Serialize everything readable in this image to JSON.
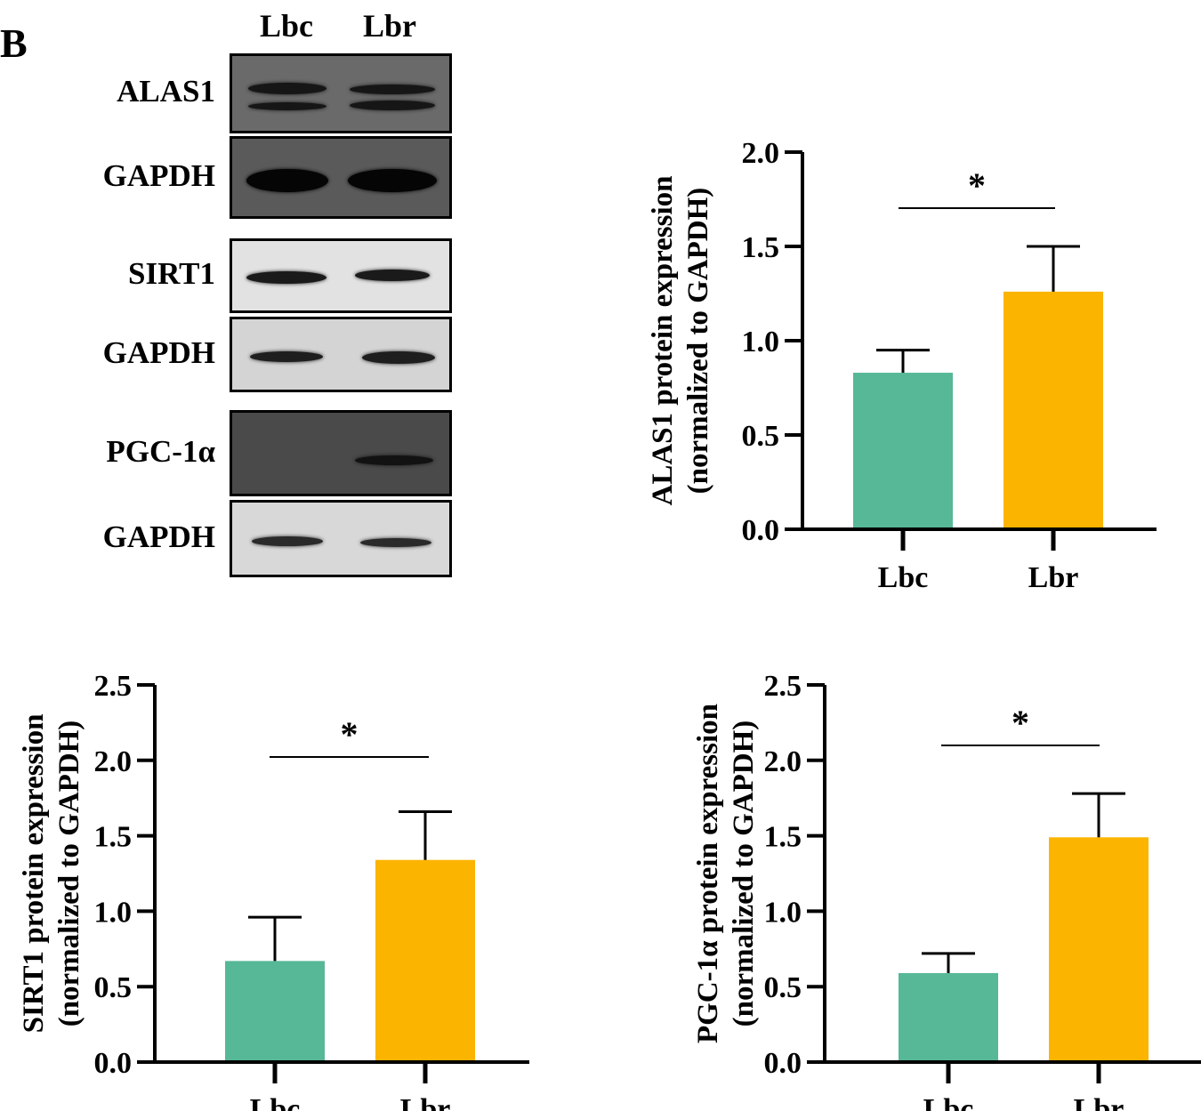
{
  "panel_letter": "B",
  "lanes": [
    "Lbc",
    "Lbr"
  ],
  "blots": [
    {
      "label": "ALAS1",
      "bg": "#6a6a6a",
      "band_color": "#161616"
    },
    {
      "label": "GAPDH",
      "bg": "#5a5a5a",
      "band_color": "#050505"
    },
    {
      "label": "SIRT1",
      "bg": "#e2e2e2",
      "band_color": "#1a1a1a"
    },
    {
      "label": "GAPDH",
      "bg": "#d4d4d4",
      "band_color": "#1e1e1e"
    },
    {
      "label": "PGC-1α",
      "bg": "#4a4a4a",
      "band_color": "#121212"
    },
    {
      "label": "GAPDH",
      "bg": "#d8d8d8",
      "band_color": "#2a2a2a"
    }
  ],
  "colors": {
    "lbc": "#56b896",
    "lbr": "#fbb400",
    "axis": "#000000"
  },
  "chart_data": [
    {
      "type": "bar",
      "categories": [
        "Lbc",
        "Lbr"
      ],
      "values": [
        0.83,
        1.26
      ],
      "errors": [
        0.12,
        0.24
      ],
      "ylabel_line1": "ALAS1 protein expression",
      "ylabel_line2": "(normalized to GAPDH)",
      "ylim": [
        0,
        2.0
      ],
      "yticks": [
        "0.0",
        "0.5",
        "1.0",
        "1.5",
        "2.0"
      ],
      "significance": "*"
    },
    {
      "type": "bar",
      "categories": [
        "Lbc",
        "Lbr"
      ],
      "values": [
        0.67,
        1.34
      ],
      "errors": [
        0.29,
        0.32
      ],
      "ylabel_line1": "SIRT1 protein expression",
      "ylabel_line2": "(normalized to GAPDH)",
      "ylim": [
        0,
        2.5
      ],
      "yticks": [
        "0.0",
        "0.5",
        "1.0",
        "1.5",
        "2.0",
        "2.5"
      ],
      "significance": "*"
    },
    {
      "type": "bar",
      "categories": [
        "Lbc",
        "Lbr"
      ],
      "values": [
        0.59,
        1.49
      ],
      "errors": [
        0.13,
        0.29
      ],
      "ylabel_line1": "PGC-1α protein expression",
      "ylabel_line2": "(normalized to GAPDH)",
      "ylim": [
        0,
        2.5
      ],
      "yticks": [
        "0.0",
        "0.5",
        "1.0",
        "1.5",
        "2.0",
        "2.5"
      ],
      "significance": "*"
    }
  ]
}
